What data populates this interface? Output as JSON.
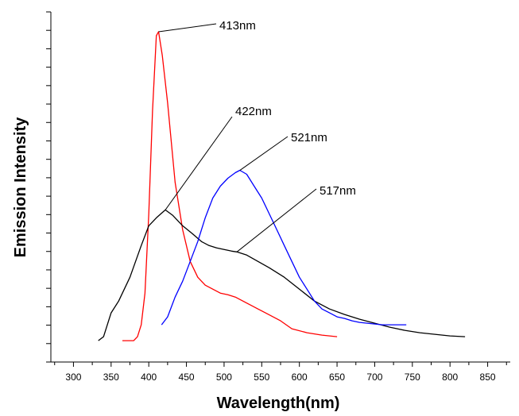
{
  "chart_data": {
    "type": "line",
    "xlabel": "Wavelength(nm)",
    "ylabel": "Emission Intensity",
    "xlim": [
      270,
      880
    ],
    "ylim": [
      -0.27,
      4.15
    ],
    "x_ticks": [
      300,
      350,
      400,
      450,
      500,
      550,
      600,
      650,
      700,
      750,
      800,
      850
    ],
    "x_tick_labels": [
      "300",
      "350",
      "400",
      "450",
      "500",
      "550",
      "600",
      "650",
      "700",
      "750",
      "800",
      "850"
    ],
    "y_tick_labels_shown": false,
    "grid": false,
    "series": [
      {
        "color": "#ff0000",
        "points": [
          [
            365,
            0.0
          ],
          [
            380,
            0.0
          ],
          [
            385,
            0.05
          ],
          [
            390,
            0.2
          ],
          [
            395,
            0.6
          ],
          [
            400,
            1.6
          ],
          [
            405,
            2.9
          ],
          [
            410,
            3.85
          ],
          [
            413,
            3.9
          ],
          [
            418,
            3.6
          ],
          [
            425,
            3.0
          ],
          [
            435,
            2.0
          ],
          [
            445,
            1.4
          ],
          [
            455,
            1.0
          ],
          [
            465,
            0.8
          ],
          [
            475,
            0.7
          ],
          [
            485,
            0.65
          ],
          [
            495,
            0.6
          ],
          [
            505,
            0.58
          ],
          [
            515,
            0.55
          ],
          [
            525,
            0.5
          ],
          [
            535,
            0.45
          ],
          [
            545,
            0.4
          ],
          [
            555,
            0.35
          ],
          [
            565,
            0.3
          ],
          [
            575,
            0.25
          ],
          [
            590,
            0.15
          ],
          [
            610,
            0.1
          ],
          [
            630,
            0.07
          ],
          [
            650,
            0.05
          ]
        ]
      },
      {
        "color": "#000000",
        "points": [
          [
            333,
            0.0
          ],
          [
            340,
            0.05
          ],
          [
            350,
            0.35
          ],
          [
            360,
            0.5
          ],
          [
            375,
            0.8
          ],
          [
            390,
            1.2
          ],
          [
            400,
            1.45
          ],
          [
            410,
            1.55
          ],
          [
            422,
            1.65
          ],
          [
            432,
            1.58
          ],
          [
            445,
            1.45
          ],
          [
            458,
            1.35
          ],
          [
            470,
            1.25
          ],
          [
            480,
            1.2
          ],
          [
            490,
            1.17
          ],
          [
            500,
            1.15
          ],
          [
            510,
            1.13
          ],
          [
            517,
            1.12
          ],
          [
            530,
            1.08
          ],
          [
            545,
            1.0
          ],
          [
            560,
            0.92
          ],
          [
            580,
            0.8
          ],
          [
            600,
            0.65
          ],
          [
            620,
            0.5
          ],
          [
            640,
            0.4
          ],
          [
            660,
            0.33
          ],
          [
            680,
            0.27
          ],
          [
            700,
            0.22
          ],
          [
            720,
            0.17
          ],
          [
            740,
            0.13
          ],
          [
            760,
            0.1
          ],
          [
            780,
            0.08
          ],
          [
            800,
            0.06
          ],
          [
            820,
            0.05
          ]
        ]
      },
      {
        "color": "#0000ff",
        "points": [
          [
            417,
            0.2
          ],
          [
            425,
            0.3
          ],
          [
            435,
            0.55
          ],
          [
            445,
            0.75
          ],
          [
            455,
            1.0
          ],
          [
            465,
            1.25
          ],
          [
            475,
            1.55
          ],
          [
            485,
            1.8
          ],
          [
            495,
            1.95
          ],
          [
            505,
            2.05
          ],
          [
            515,
            2.12
          ],
          [
            521,
            2.15
          ],
          [
            530,
            2.1
          ],
          [
            540,
            1.95
          ],
          [
            550,
            1.8
          ],
          [
            560,
            1.6
          ],
          [
            570,
            1.4
          ],
          [
            580,
            1.2
          ],
          [
            590,
            1.0
          ],
          [
            600,
            0.8
          ],
          [
            610,
            0.65
          ],
          [
            620,
            0.5
          ],
          [
            630,
            0.4
          ],
          [
            640,
            0.35
          ],
          [
            650,
            0.3
          ],
          [
            660,
            0.28
          ],
          [
            670,
            0.25
          ],
          [
            680,
            0.23
          ],
          [
            690,
            0.22
          ],
          [
            700,
            0.21
          ],
          [
            710,
            0.2
          ],
          [
            720,
            0.2
          ],
          [
            730,
            0.2
          ],
          [
            742,
            0.2
          ]
        ]
      }
    ],
    "annotations": [
      {
        "text": "413nm",
        "x": 413,
        "y": 3.9
      },
      {
        "text": "422nm",
        "x": 422,
        "y": 1.65
      },
      {
        "text": "521nm",
        "x": 521,
        "y": 2.15
      },
      {
        "text": "517nm",
        "x": 517,
        "y": 1.12
      }
    ]
  }
}
